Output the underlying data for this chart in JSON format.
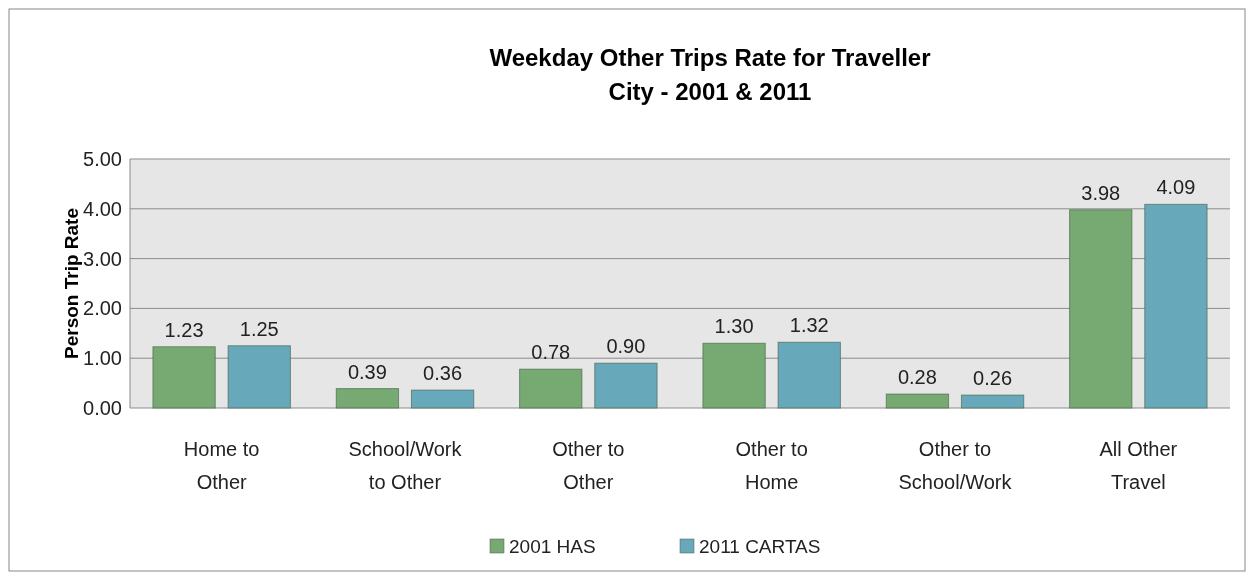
{
  "chart_data": {
    "type": "bar",
    "title": "Weekday Other Trips Rate for Traveller\nCity - 2001 & 2011",
    "ylabel": "Person Trip Rate",
    "categories": [
      "Home to\nOther",
      "School/Work\nto Other",
      "Other to\nOther",
      "Other to\nHome",
      "Other to\nSchool/Work",
      "All Other\nTravel"
    ],
    "series": [
      {
        "name": "2001 HAS",
        "color": "#77a972",
        "values": [
          1.23,
          0.39,
          0.78,
          1.3,
          0.28,
          3.98
        ],
        "value_labels": [
          "1.23",
          "0.39",
          "0.78",
          "1.30",
          "0.28",
          "3.98"
        ]
      },
      {
        "name": "2011 CARTAS",
        "color": "#67a8bb",
        "values": [
          1.25,
          0.36,
          0.9,
          1.32,
          0.26,
          4.09
        ],
        "value_labels": [
          "1.25",
          "0.36",
          "0.90",
          "1.32",
          "0.26",
          "4.09"
        ]
      }
    ],
    "ylim": [
      0,
      5
    ],
    "yticks": [
      {
        "value": 0,
        "label": "0.00"
      },
      {
        "value": 1,
        "label": "1.00"
      },
      {
        "value": 2,
        "label": "2.00"
      },
      {
        "value": 3,
        "label": "3.00"
      },
      {
        "value": 4,
        "label": "4.00"
      },
      {
        "value": 5,
        "label": "5.00"
      }
    ],
    "grid": "y",
    "legend": "bottom"
  }
}
